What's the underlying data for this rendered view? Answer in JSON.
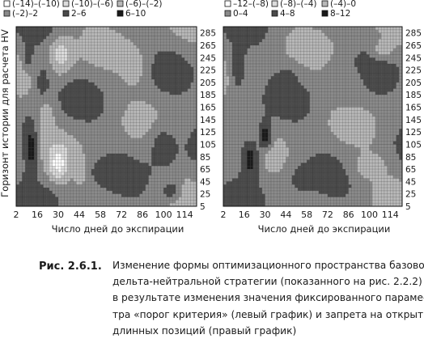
{
  "figure": {
    "ylabel": "Горизонт истории для расчета HV",
    "xlabel": "Число дней до экспирации",
    "x_ticks": [
      "2",
      "16",
      "30",
      "44",
      "58",
      "72",
      "86",
      "100",
      "114"
    ],
    "y_ticks": [
      "285",
      "265",
      "245",
      "225",
      "205",
      "185",
      "165",
      "145",
      "125",
      "105",
      "85",
      "65",
      "45",
      "25",
      "5"
    ]
  },
  "caption": {
    "label": "Рис. 2.6.1.",
    "lines": [
      "Изменение формы оптимизационного пространства базовой",
      "дельта-нейтральной стратегии (показанного на рис. 2.2.2)",
      "в результате изменения значения фиксированного параме-",
      "тра «порог критерия» (левый график) и запрета на открытие",
      "длинных позиций (правый график)"
    ]
  },
  "chart_data": [
    {
      "type": "heatmap",
      "panel": "left",
      "xlabel": "Число дней до экспирации",
      "ylabel": "Горизонт истории для расчета HV",
      "x_ticks": [
        2,
        16,
        30,
        44,
        58,
        72,
        86,
        100,
        114
      ],
      "y_ticks": [
        5,
        25,
        45,
        65,
        85,
        105,
        125,
        145,
        165,
        185,
        205,
        225,
        245,
        265,
        285
      ],
      "xlim": [
        2,
        122
      ],
      "ylim": [
        5,
        295
      ],
      "legend": [
        "(–14)–(–10)",
        "(–10)–(–6)",
        "(–6)–(–2)",
        "(–2)–2",
        "2–6",
        "6–10"
      ],
      "legend_fill": [
        "#ffffff",
        "#dcdcdc",
        "#b8b8b8",
        "#8a8a8a",
        "#4a4a4a",
        "#1a1a1a"
      ],
      "grid": true,
      "blobs": [
        {
          "x": 12,
          "y": 100,
          "level": 5,
          "rx": 6,
          "ry": 60
        },
        {
          "x": 20,
          "y": 200,
          "level": 4,
          "rx": 7,
          "ry": 60
        },
        {
          "x": 10,
          "y": 250,
          "level": 4,
          "rx": 5,
          "ry": 30
        },
        {
          "x": 30,
          "y": 75,
          "level": 0,
          "rx": 8,
          "ry": 35
        },
        {
          "x": 32,
          "y": 250,
          "level": 1,
          "rx": 10,
          "ry": 40
        },
        {
          "x": 22,
          "y": 150,
          "level": 2,
          "rx": 8,
          "ry": 40
        },
        {
          "x": 45,
          "y": 60,
          "level": 2,
          "rx": 6,
          "ry": 30
        },
        {
          "x": 80,
          "y": 230,
          "level": 2,
          "rx": 12,
          "ry": 45
        },
        {
          "x": 100,
          "y": 100,
          "level": 4,
          "rx": 14,
          "ry": 50
        },
        {
          "x": 105,
          "y": 30,
          "level": 4,
          "rx": 8,
          "ry": 18
        },
        {
          "x": 60,
          "y": 60,
          "level": 4,
          "rx": 10,
          "ry": 25
        }
      ]
    },
    {
      "type": "heatmap",
      "panel": "right",
      "xlabel": "Число дней до экспирации",
      "ylabel": "",
      "x_ticks": [
        2,
        16,
        30,
        44,
        58,
        72,
        86,
        100,
        114
      ],
      "y_ticks": [
        5,
        25,
        45,
        65,
        85,
        105,
        125,
        145,
        165,
        185,
        205,
        225,
        245,
        265,
        285
      ],
      "xlim": [
        2,
        122
      ],
      "ylim": [
        5,
        295
      ],
      "legend": [
        "–12–(–8)",
        "(–8)–(–4)",
        "(–4)–0",
        "0–4",
        "4–8",
        "8–12"
      ],
      "legend_fill": [
        "#ffffff",
        "#dcdcdc",
        "#b8b8b8",
        "#8a8a8a",
        "#4a4a4a",
        "#1a1a1a"
      ],
      "grid": true,
      "blobs": [
        {
          "x": 20,
          "y": 80,
          "level": 5,
          "rx": 8,
          "ry": 45
        },
        {
          "x": 30,
          "y": 120,
          "level": 5,
          "rx": 6,
          "ry": 30
        },
        {
          "x": 12,
          "y": 230,
          "level": 4,
          "rx": 8,
          "ry": 70
        },
        {
          "x": 45,
          "y": 210,
          "level": 4,
          "rx": 8,
          "ry": 25
        },
        {
          "x": 100,
          "y": 70,
          "level": 2,
          "rx": 16,
          "ry": 30
        },
        {
          "x": 85,
          "y": 200,
          "level": 3,
          "rx": 14,
          "ry": 40
        },
        {
          "x": 55,
          "y": 50,
          "level": 4,
          "rx": 10,
          "ry": 30
        },
        {
          "x": 110,
          "y": 260,
          "level": 2,
          "rx": 10,
          "ry": 20
        }
      ]
    }
  ]
}
